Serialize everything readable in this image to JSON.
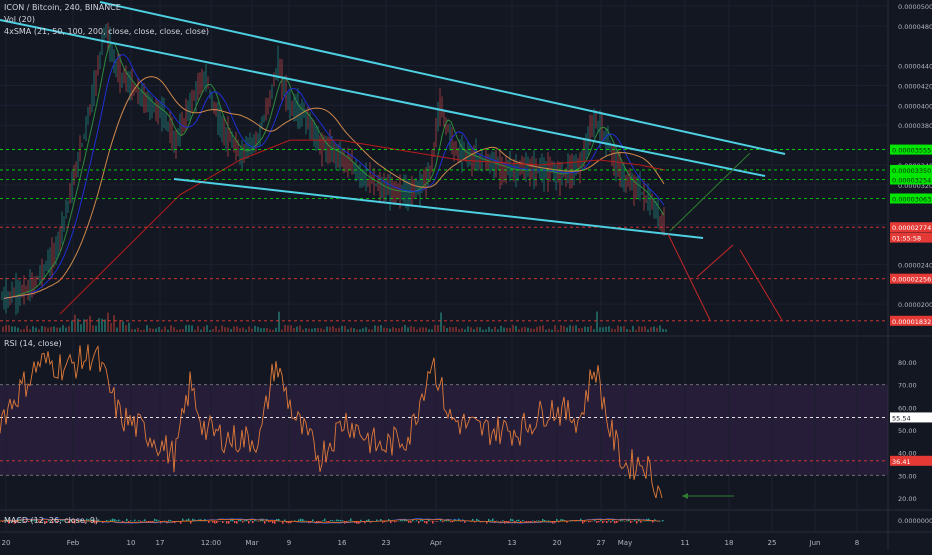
{
  "header": {
    "title": "ICON / Bitcoin, 240, BINANCE",
    "vol": "Vol (20)",
    "sma": "4xSMA (21, 50, 100, 200, close, close, close, close)"
  },
  "rsi_label": "RSI (14, close)",
  "macd_label": "MACD (12, 26, close, 9)",
  "chart_data": [
    {
      "type": "line",
      "pane": "price",
      "y_ticks": [
        "0.00005000",
        "0.00004800",
        "0.00004400",
        "0.00004200",
        "0.00004000",
        "0.00003800",
        "0.00003400",
        "0.00003200",
        "0.00002800",
        "0.00002400",
        "0.00002000"
      ],
      "x_ticks": [
        "20",
        "Feb",
        "10",
        "17",
        "12:00",
        "Mar",
        "9",
        "16",
        "23",
        "Apr",
        "13",
        "20",
        "27",
        "May",
        "11",
        "18",
        "25",
        "Jun",
        "8"
      ],
      "price_tags": [
        {
          "label": "0.00003555",
          "color": "#00e600"
        },
        {
          "label": "0.00003350",
          "color": "#00e600"
        },
        {
          "label": "0.00003254",
          "color": "#00e600"
        },
        {
          "label": "0.00003063",
          "color": "#00e600"
        },
        {
          "label": "0.00002774",
          "color": "#e53935"
        },
        {
          "label": "01:55:58",
          "color": "#e53935"
        },
        {
          "label": "0.00002256",
          "color": "#e53935"
        },
        {
          "label": "0.00001832",
          "color": "#e53935"
        }
      ],
      "ylim": [
        1.8e-05,
        5.05e-05
      ]
    },
    {
      "type": "line",
      "pane": "rsi",
      "y_ticks": [
        "80.00",
        "70.00",
        "60.00",
        "50.00",
        "40.00",
        "30.00",
        "20.00"
      ],
      "value_tags": [
        {
          "label": "55.54",
          "color": "#ffffff"
        },
        {
          "label": "36.41",
          "color": "#e53935"
        }
      ],
      "ylim": [
        15,
        88
      ]
    },
    {
      "type": "line",
      "pane": "macd",
      "y_ticks": [
        "0.00000000"
      ]
    }
  ]
}
